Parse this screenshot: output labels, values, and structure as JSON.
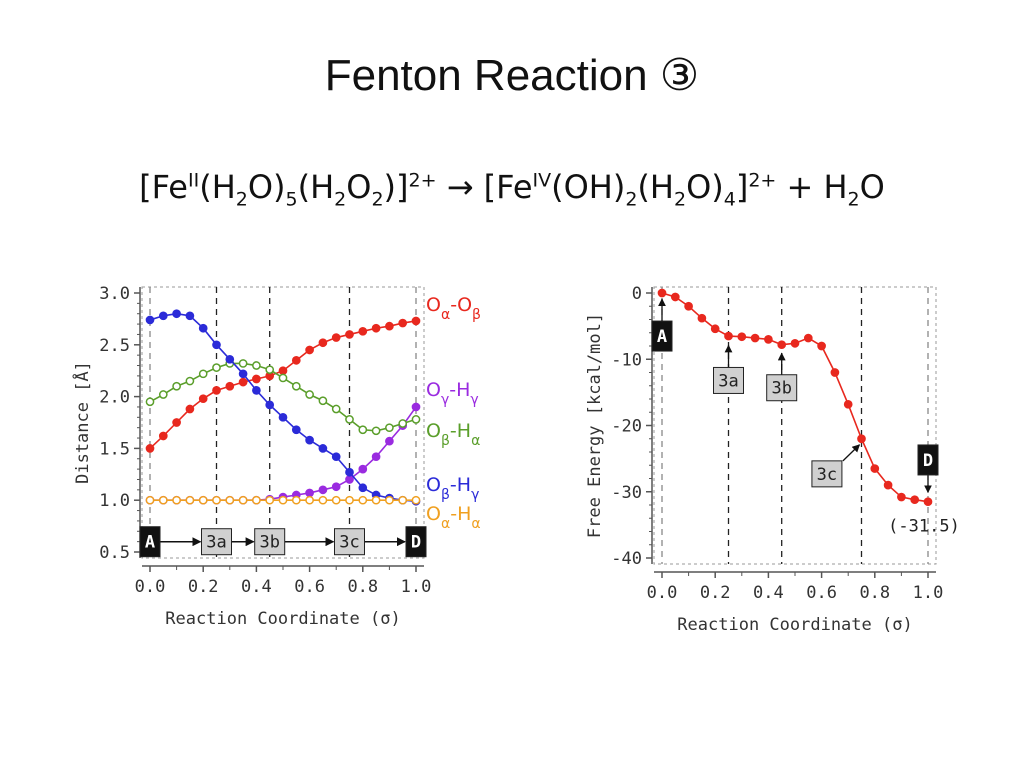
{
  "slide": {
    "title": "Fenton Reaction ③",
    "equation": {
      "lhs_a": "[Fe",
      "lhs_ox": "II",
      "lhs_b": "(H",
      "lhs_s1": "2",
      "lhs_c": "O)",
      "lhs_s2": "5",
      "lhs_d": "(H",
      "lhs_s3": "2",
      "lhs_e": "O",
      "lhs_s4": "2",
      "lhs_f": ")]",
      "lhs_ch": "2+",
      "arrow": " → ",
      "rhs_a": "[Fe",
      "rhs_ox": "IV",
      "rhs_b": "(OH)",
      "rhs_s1": "2",
      "rhs_c": "(H",
      "rhs_s2": "2",
      "rhs_d": "O)",
      "rhs_s3": "4",
      "rhs_e": "]",
      "rhs_ch": "2+",
      "plus": " + H",
      "rhs_s4": "2",
      "rhs_f": "O"
    }
  },
  "colors": {
    "red": "#e8281e",
    "blue": "#2b2bd8",
    "green": "#5a9e2a",
    "purple": "#9a2be0",
    "orange": "#f0a020",
    "axis": "#555555",
    "label_box": "#d0d0d0"
  },
  "chart_data": [
    {
      "type": "line",
      "xlabel": "Reaction Coordinate (σ)",
      "ylabel": "Distance [Å]",
      "xlim": [
        0.0,
        1.0
      ],
      "ylim": [
        0.5,
        3.0
      ],
      "xticks": [
        "0.0",
        "0.2",
        "0.4",
        "0.6",
        "0.8",
        "1.0"
      ],
      "yticks": [
        "0.5",
        "1.0",
        "1.5",
        "2.0",
        "2.5",
        "3.0"
      ],
      "vlines": [
        0.0,
        0.25,
        0.45,
        0.75,
        1.0
      ],
      "x": [
        0.0,
        0.05,
        0.1,
        0.15,
        0.2,
        0.25,
        0.3,
        0.35,
        0.4,
        0.45,
        0.5,
        0.55,
        0.6,
        0.65,
        0.7,
        0.75,
        0.8,
        0.85,
        0.9,
        0.95,
        1.0
      ],
      "series": [
        {
          "name": "Oα-Oβ",
          "color": "red",
          "filled": true,
          "values": [
            1.5,
            1.62,
            1.75,
            1.88,
            1.98,
            2.06,
            2.1,
            2.14,
            2.17,
            2.2,
            2.25,
            2.35,
            2.45,
            2.52,
            2.57,
            2.6,
            2.63,
            2.66,
            2.68,
            2.71,
            2.73
          ]
        },
        {
          "name": "Oγ-Hγ",
          "color": "purple",
          "filled": true,
          "values": [
            1.0,
            1.0,
            1.0,
            1.0,
            1.0,
            1.0,
            1.0,
            1.0,
            1.0,
            1.01,
            1.03,
            1.05,
            1.07,
            1.1,
            1.13,
            1.2,
            1.3,
            1.42,
            1.57,
            1.72,
            1.9
          ]
        },
        {
          "name": "Oβ-Hα",
          "color": "green",
          "filled": false,
          "values": [
            1.95,
            2.02,
            2.1,
            2.15,
            2.22,
            2.28,
            2.32,
            2.32,
            2.3,
            2.26,
            2.18,
            2.1,
            2.02,
            1.96,
            1.88,
            1.78,
            1.68,
            1.67,
            1.7,
            1.74,
            1.78
          ]
        },
        {
          "name": "Oβ-Hγ",
          "color": "blue",
          "filled": true,
          "values": [
            2.74,
            2.78,
            2.8,
            2.78,
            2.66,
            2.5,
            2.36,
            2.22,
            2.06,
            1.92,
            1.8,
            1.68,
            1.58,
            1.5,
            1.42,
            1.27,
            1.12,
            1.05,
            1.02,
            1.0,
            0.99
          ]
        },
        {
          "name": "Oα-Hα",
          "color": "orange",
          "filled": false,
          "values": [
            1.0,
            1.0,
            1.0,
            1.0,
            1.0,
            1.0,
            1.0,
            1.0,
            1.0,
            1.0,
            1.0,
            1.0,
            1.0,
            1.0,
            1.0,
            1.0,
            1.0,
            1.0,
            1.0,
            1.0,
            1.0
          ]
        }
      ],
      "legend_order": [
        "Oα-Oβ",
        "Oγ-Hγ",
        "Oβ-Hα",
        "Oβ-Hγ",
        "Oα-Hα"
      ],
      "stage_labels": [
        {
          "label": "A",
          "x": 0.0,
          "style": "black"
        },
        {
          "label": "3a",
          "x": 0.25,
          "style": "gray"
        },
        {
          "label": "3b",
          "x": 0.45,
          "style": "gray"
        },
        {
          "label": "3c",
          "x": 0.75,
          "style": "gray"
        },
        {
          "label": "D",
          "x": 1.0,
          "style": "black"
        }
      ],
      "stage_y": 0.58
    },
    {
      "type": "line",
      "xlabel": "Reaction Coordinate (σ)",
      "ylabel": "Free Energy [kcal/mol]",
      "xlim": [
        0.0,
        1.0
      ],
      "ylim": [
        -40,
        0
      ],
      "xticks": [
        "0.0",
        "0.2",
        "0.4",
        "0.6",
        "0.8",
        "1.0"
      ],
      "yticks": [
        "0",
        "-10",
        "-20",
        "-30",
        "-40"
      ],
      "vlines": [
        0.0,
        0.25,
        0.45,
        0.75,
        1.0
      ],
      "x": [
        0.0,
        0.05,
        0.1,
        0.15,
        0.2,
        0.25,
        0.3,
        0.35,
        0.4,
        0.45,
        0.5,
        0.55,
        0.6,
        0.65,
        0.7,
        0.75,
        0.8,
        0.85,
        0.9,
        0.95,
        1.0
      ],
      "series": [
        {
          "name": "Free Energy",
          "color": "red",
          "filled": true,
          "values": [
            0.0,
            -0.6,
            -2.0,
            -3.8,
            -5.4,
            -6.5,
            -6.6,
            -6.8,
            -7.0,
            -7.8,
            -7.6,
            -6.8,
            -8.0,
            -12.0,
            -16.8,
            -22.0,
            -26.5,
            -29.0,
            -30.8,
            -31.2,
            -31.5
          ]
        }
      ],
      "stage_labels": [
        {
          "label": "A",
          "x": 0.0,
          "y": -6.5,
          "style": "black",
          "arrow_to": 0.0
        },
        {
          "label": "3a",
          "x": 0.25,
          "y": -13.2,
          "style": "gray",
          "arrow_to": -7.0
        },
        {
          "label": "3b",
          "x": 0.45,
          "y": -14.3,
          "style": "gray",
          "arrow_to": -8.2
        },
        {
          "label": "3c",
          "x": 0.62,
          "y": -27.3,
          "style": "gray",
          "arrow_to": -22.0
        },
        {
          "label": "D",
          "x": 1.0,
          "y": -25.2,
          "style": "black",
          "arrow_to": -31.0
        }
      ],
      "end_annotation": "(-31.5)"
    }
  ]
}
